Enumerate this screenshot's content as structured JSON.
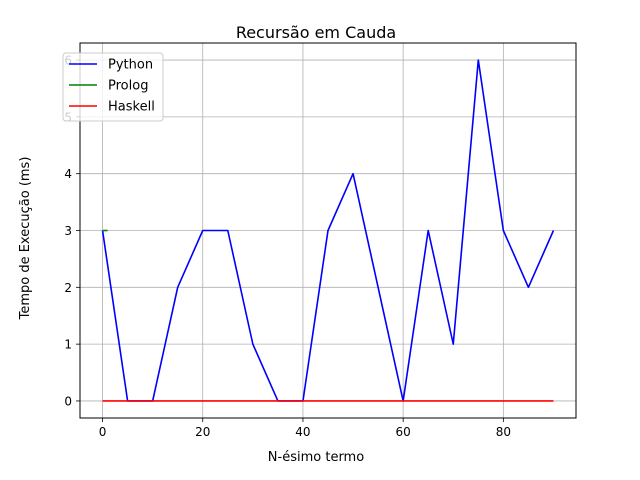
{
  "chart_data": {
    "type": "line",
    "title": "Recursão em Cauda",
    "xlabel": "N-ésimo termo",
    "ylabel": "Tempo de Execução (ms)",
    "xlim": [
      -4.5,
      94.5
    ],
    "ylim": [
      -0.3,
      6.3
    ],
    "xticks": [
      0,
      20,
      40,
      60,
      80
    ],
    "xtick_labels": [
      "0",
      "20",
      "40",
      "60",
      "80"
    ],
    "yticks": [
      0,
      1,
      2,
      3,
      4,
      5,
      6
    ],
    "ytick_labels": [
      "0",
      "1",
      "2",
      "3",
      "4",
      "5",
      "6"
    ],
    "grid": true,
    "legend": "top-left",
    "series": [
      {
        "name": "Python",
        "color": "#0000ff",
        "x": [
          0,
          5,
          10,
          15,
          20,
          25,
          30,
          35,
          40,
          45,
          50,
          55,
          60,
          65,
          70,
          75,
          80,
          85,
          90
        ],
        "y": [
          3,
          0,
          0,
          2,
          3,
          3,
          1,
          0,
          0,
          3,
          4,
          2,
          0,
          3,
          1,
          6,
          3,
          2,
          3
        ]
      },
      {
        "name": "Prolog",
        "color": "#008000",
        "x": [
          0,
          1
        ],
        "y": [
          3,
          3
        ]
      },
      {
        "name": "Haskell",
        "color": "#ff0000",
        "x": [
          0,
          5,
          10,
          15,
          20,
          25,
          30,
          35,
          40,
          45,
          50,
          55,
          60,
          65,
          70,
          75,
          80,
          85,
          90
        ],
        "y": [
          0,
          0,
          0,
          0,
          0,
          0,
          0,
          0,
          0,
          0,
          0,
          0,
          0,
          0,
          0,
          0,
          0,
          0,
          0
        ]
      }
    ]
  }
}
